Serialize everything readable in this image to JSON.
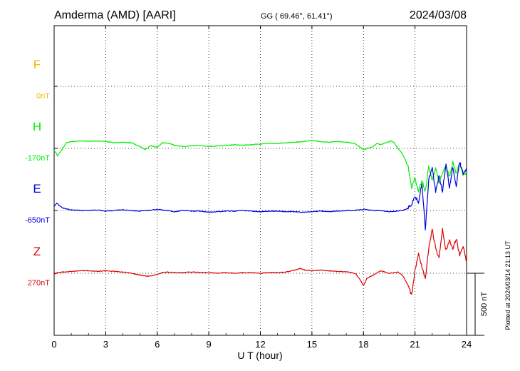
{
  "header": {
    "station": "Amderma (AMD)  [AARI]",
    "coords": "GG ( 69.46°,  61.41°)",
    "date": "2024/03/08"
  },
  "footer": {
    "plotted_note": "Plotted at 2024/03/14 21:13 UT"
  },
  "chart_data": {
    "type": "line",
    "xlabel": "U T (hour)",
    "xlim": [
      0,
      24
    ],
    "xticks": [
      "0",
      "3",
      "6",
      "9",
      "12",
      "15",
      "18",
      "21",
      "24"
    ],
    "scale_bar": {
      "label": "500 nT",
      "value_nT": 500
    },
    "grid": true,
    "series": [
      {
        "name": "F",
        "baseline_label": "0nT",
        "color": "#f5b800",
        "x": [],
        "y": []
      },
      {
        "name": "H",
        "baseline_label": "-170nT",
        "color": "#00ee00",
        "x": [
          0,
          0.1,
          0.2,
          0.3,
          0.5,
          0.7,
          1.0,
          1.5,
          2.0,
          2.5,
          3.0,
          3.5,
          4.0,
          4.5,
          5.0,
          5.3,
          5.6,
          6.0,
          6.3,
          6.7,
          7.0,
          7.5,
          8.0,
          8.5,
          9.0,
          9.5,
          10.0,
          10.5,
          11.0,
          11.5,
          12.0,
          12.5,
          13.0,
          13.5,
          14.0,
          14.5,
          15.0,
          15.5,
          16.0,
          16.5,
          17.0,
          17.5,
          17.8,
          18.0,
          18.2,
          18.5,
          18.8,
          19.0,
          19.3,
          19.6,
          19.8,
          20.0,
          20.2,
          20.4,
          20.6,
          20.8,
          21.0,
          21.2,
          21.4,
          21.6,
          21.8,
          22.0,
          22.2,
          22.4,
          22.6,
          22.8,
          23.0,
          23.2,
          23.4,
          23.6,
          23.8,
          24.0
        ],
        "y": [
          -20,
          -35,
          -60,
          -40,
          0,
          45,
          55,
          60,
          58,
          60,
          55,
          45,
          50,
          45,
          15,
          -10,
          20,
          10,
          45,
          40,
          25,
          15,
          20,
          25,
          15,
          20,
          25,
          30,
          25,
          30,
          35,
          40,
          40,
          45,
          50,
          55,
          65,
          55,
          50,
          55,
          50,
          40,
          10,
          -10,
          0,
          10,
          40,
          30,
          45,
          60,
          45,
          0,
          -30,
          -80,
          -150,
          -320,
          -240,
          -340,
          -250,
          -350,
          -130,
          -260,
          -150,
          -270,
          -190,
          -150,
          -230,
          -110,
          -200,
          -120,
          -210,
          -200
        ]
      },
      {
        "name": "E",
        "baseline_label": "-650nT",
        "color": "#0000dd",
        "x": [
          0,
          0.15,
          0.3,
          0.5,
          0.8,
          1.0,
          1.5,
          2.0,
          2.5,
          3.0,
          3.5,
          4.0,
          4.5,
          5.0,
          5.5,
          6.0,
          6.5,
          7.0,
          7.5,
          8.0,
          8.5,
          9.0,
          9.5,
          10.0,
          10.5,
          11.0,
          11.5,
          12.0,
          12.5,
          13.0,
          13.5,
          14.0,
          14.5,
          15.0,
          15.5,
          16.0,
          16.5,
          17.0,
          17.5,
          18.0,
          18.5,
          19.0,
          19.5,
          20.0,
          20.3,
          20.6,
          20.8,
          21.0,
          21.2,
          21.4,
          21.6,
          21.8,
          22.0,
          22.2,
          22.4,
          22.6,
          22.8,
          23.0,
          23.2,
          23.4,
          23.6,
          23.8,
          24.0
        ],
        "y": [
          30,
          60,
          40,
          20,
          10,
          5,
          0,
          0,
          5,
          -5,
          0,
          5,
          0,
          -5,
          0,
          10,
          0,
          -10,
          0,
          -5,
          -5,
          -15,
          -10,
          -5,
          -5,
          0,
          -5,
          -10,
          -5,
          -5,
          -10,
          -10,
          -15,
          -10,
          -5,
          -10,
          -5,
          0,
          0,
          10,
          0,
          0,
          -10,
          -5,
          0,
          20,
          50,
          120,
          60,
          220,
          -150,
          250,
          350,
          150,
          280,
          150,
          380,
          180,
          350,
          200,
          390,
          300,
          340
        ]
      },
      {
        "name": "Z",
        "baseline_label": "270nT",
        "color": "#dd0000",
        "x": [
          0,
          0.2,
          0.5,
          1.0,
          1.5,
          2.0,
          2.5,
          3.0,
          3.5,
          4.0,
          4.5,
          5.0,
          5.5,
          6.0,
          6.3,
          6.6,
          7.0,
          7.5,
          8.0,
          8.5,
          9.0,
          9.5,
          10.0,
          10.5,
          11.0,
          11.5,
          12.0,
          12.5,
          13.0,
          13.5,
          14.0,
          14.3,
          14.6,
          15.0,
          15.5,
          16.0,
          16.5,
          17.0,
          17.5,
          17.8,
          18.0,
          18.2,
          18.5,
          19.0,
          19.5,
          20.0,
          20.3,
          20.6,
          20.8,
          21.0,
          21.2,
          21.4,
          21.6,
          21.8,
          22.0,
          22.2,
          22.4,
          22.6,
          22.8,
          23.0,
          23.2,
          23.4,
          23.6,
          23.8,
          24.0
        ],
        "y": [
          -10,
          5,
          10,
          15,
          20,
          20,
          15,
          20,
          15,
          10,
          0,
          -15,
          -25,
          -10,
          5,
          10,
          5,
          5,
          10,
          5,
          5,
          0,
          5,
          0,
          5,
          5,
          0,
          5,
          5,
          10,
          25,
          40,
          25,
          20,
          25,
          20,
          15,
          10,
          0,
          -50,
          -100,
          -40,
          -20,
          20,
          0,
          10,
          -20,
          -100,
          -180,
          20,
          150,
          50,
          -40,
          200,
          350,
          200,
          120,
          350,
          180,
          260,
          200,
          280,
          150,
          220,
          90
        ]
      }
    ]
  }
}
